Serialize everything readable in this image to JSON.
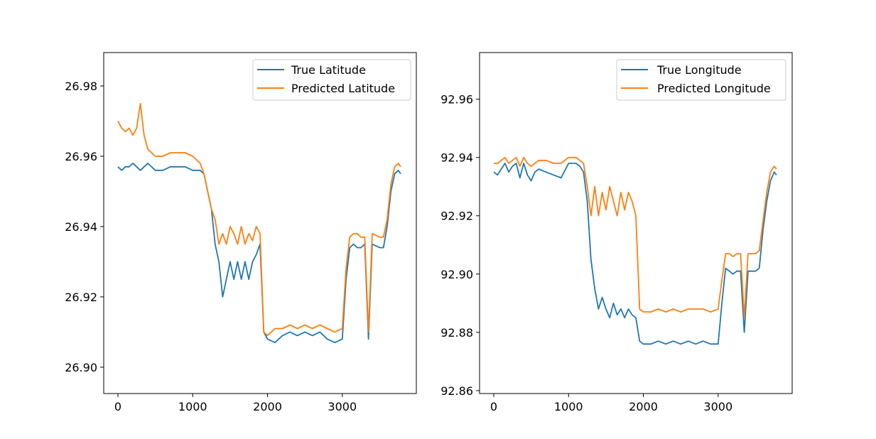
{
  "chart_data": [
    {
      "type": "line",
      "title": "",
      "xlabel": "",
      "ylabel": "",
      "xlim": [
        -190,
        3990
      ],
      "ylim": [
        26.8925,
        26.9895
      ],
      "xticks": [
        0,
        1000,
        2000,
        3000
      ],
      "xtick_labels": [
        "0",
        "1000",
        "2000",
        "3000"
      ],
      "yticks": [
        26.9,
        26.92,
        26.94,
        26.96,
        26.98
      ],
      "ytick_labels": [
        "26.90",
        "26.92",
        "26.94",
        "26.96",
        "26.98"
      ],
      "legend_position": "top-right",
      "grid": false,
      "series": [
        {
          "name": "True Latitude",
          "color": "#1f77b4",
          "x": [
            0,
            50,
            100,
            150,
            200,
            250,
            300,
            350,
            400,
            500,
            600,
            700,
            800,
            900,
            1000,
            1100,
            1150,
            1200,
            1250,
            1300,
            1350,
            1400,
            1450,
            1500,
            1550,
            1600,
            1650,
            1700,
            1750,
            1800,
            1850,
            1900,
            1950,
            2000,
            2100,
            2200,
            2300,
            2400,
            2500,
            2600,
            2700,
            2800,
            2900,
            3000,
            3050,
            3100,
            3150,
            3200,
            3250,
            3300,
            3350,
            3400,
            3500,
            3550,
            3600,
            3650,
            3700,
            3750,
            3780
          ],
          "y": [
            26.957,
            26.956,
            26.957,
            26.957,
            26.958,
            26.957,
            26.956,
            26.957,
            26.958,
            26.956,
            26.956,
            26.957,
            26.957,
            26.957,
            26.956,
            26.956,
            26.955,
            26.95,
            26.945,
            26.935,
            26.93,
            26.92,
            26.925,
            26.93,
            26.925,
            26.93,
            26.925,
            26.93,
            26.925,
            26.93,
            26.932,
            26.935,
            26.91,
            26.908,
            26.907,
            26.909,
            26.91,
            26.909,
            26.91,
            26.909,
            26.91,
            26.908,
            26.907,
            26.908,
            26.925,
            26.934,
            26.935,
            26.934,
            26.934,
            26.935,
            26.908,
            26.935,
            26.934,
            26.934,
            26.94,
            26.95,
            26.955,
            26.956,
            26.955
          ]
        },
        {
          "name": "Predicted Latitude",
          "color": "#ff7f0e",
          "x": [
            0,
            50,
            100,
            150,
            200,
            250,
            300,
            350,
            400,
            500,
            600,
            700,
            800,
            900,
            1000,
            1100,
            1150,
            1200,
            1250,
            1300,
            1350,
            1400,
            1450,
            1500,
            1550,
            1600,
            1650,
            1700,
            1750,
            1800,
            1850,
            1900,
            1950,
            2000,
            2100,
            2200,
            2300,
            2400,
            2500,
            2600,
            2700,
            2800,
            2900,
            3000,
            3050,
            3100,
            3150,
            3200,
            3250,
            3300,
            3350,
            3400,
            3500,
            3550,
            3600,
            3650,
            3700,
            3750,
            3780
          ],
          "y": [
            26.97,
            26.968,
            26.967,
            26.968,
            26.966,
            26.968,
            26.975,
            26.966,
            26.962,
            26.96,
            26.96,
            26.961,
            26.961,
            26.961,
            26.96,
            26.958,
            26.955,
            26.95,
            26.945,
            26.942,
            26.935,
            26.938,
            26.935,
            26.94,
            26.938,
            26.935,
            26.94,
            26.935,
            26.938,
            26.936,
            26.94,
            26.938,
            26.91,
            26.909,
            26.911,
            26.911,
            26.912,
            26.911,
            26.912,
            26.911,
            26.912,
            26.911,
            26.91,
            26.911,
            26.928,
            26.937,
            26.938,
            26.938,
            26.937,
            26.937,
            26.91,
            26.938,
            26.937,
            26.937,
            26.942,
            26.952,
            26.957,
            26.958,
            26.957
          ]
        }
      ]
    },
    {
      "type": "line",
      "title": "",
      "xlabel": "",
      "ylabel": "",
      "xlim": [
        -190,
        3990
      ],
      "ylim": [
        92.859,
        92.976
      ],
      "xticks": [
        0,
        1000,
        2000,
        3000
      ],
      "xtick_labels": [
        "0",
        "1000",
        "2000",
        "3000"
      ],
      "yticks": [
        92.86,
        92.88,
        92.9,
        92.92,
        92.94,
        92.96
      ],
      "ytick_labels": [
        "92.86",
        "92.88",
        "92.90",
        "92.92",
        "92.94",
        "92.96"
      ],
      "legend_position": "top-right",
      "grid": false,
      "series": [
        {
          "name": "True Longitude",
          "color": "#1f77b4",
          "x": [
            0,
            50,
            100,
            150,
            200,
            250,
            300,
            350,
            400,
            450,
            500,
            550,
            600,
            700,
            800,
            900,
            1000,
            1100,
            1150,
            1200,
            1250,
            1300,
            1350,
            1400,
            1450,
            1500,
            1550,
            1600,
            1650,
            1700,
            1750,
            1800,
            1850,
            1900,
            1950,
            2000,
            2100,
            2200,
            2300,
            2400,
            2500,
            2600,
            2700,
            2800,
            2900,
            3000,
            3050,
            3100,
            3150,
            3200,
            3250,
            3300,
            3350,
            3400,
            3500,
            3550,
            3600,
            3650,
            3700,
            3750,
            3780
          ],
          "y": [
            92.935,
            92.934,
            92.936,
            92.938,
            92.935,
            92.937,
            92.938,
            92.933,
            92.938,
            92.934,
            92.932,
            92.935,
            92.936,
            92.935,
            92.934,
            92.933,
            92.938,
            92.938,
            92.937,
            92.935,
            92.925,
            92.905,
            92.895,
            92.888,
            92.892,
            92.888,
            92.885,
            92.89,
            92.886,
            92.888,
            92.885,
            92.888,
            92.886,
            92.885,
            92.877,
            92.876,
            92.876,
            92.877,
            92.876,
            92.877,
            92.876,
            92.877,
            92.876,
            92.877,
            92.876,
            92.876,
            92.89,
            92.902,
            92.901,
            92.9,
            92.901,
            92.901,
            92.88,
            92.901,
            92.901,
            92.902,
            92.915,
            92.925,
            92.932,
            92.935,
            92.934
          ]
        },
        {
          "name": "Predicted Longitude",
          "color": "#ff7f0e",
          "x": [
            0,
            50,
            100,
            150,
            200,
            250,
            300,
            350,
            400,
            450,
            500,
            550,
            600,
            700,
            800,
            900,
            1000,
            1100,
            1150,
            1200,
            1250,
            1300,
            1350,
            1400,
            1450,
            1500,
            1550,
            1600,
            1650,
            1700,
            1750,
            1800,
            1850,
            1900,
            1950,
            2000,
            2100,
            2200,
            2300,
            2400,
            2500,
            2600,
            2700,
            2800,
            2900,
            3000,
            3050,
            3100,
            3150,
            3200,
            3250,
            3300,
            3350,
            3400,
            3500,
            3550,
            3600,
            3650,
            3700,
            3750,
            3780
          ],
          "y": [
            92.938,
            92.938,
            92.939,
            92.94,
            92.938,
            92.939,
            92.94,
            92.937,
            92.94,
            92.938,
            92.937,
            92.938,
            92.939,
            92.939,
            92.938,
            92.938,
            92.94,
            92.94,
            92.939,
            92.938,
            92.93,
            92.92,
            92.93,
            92.92,
            92.928,
            92.922,
            92.93,
            92.925,
            92.92,
            92.928,
            92.922,
            92.928,
            92.925,
            92.92,
            92.888,
            92.887,
            92.887,
            92.888,
            92.887,
            92.888,
            92.887,
            92.888,
            92.888,
            92.888,
            92.887,
            92.888,
            92.898,
            92.907,
            92.907,
            92.906,
            92.907,
            92.907,
            92.885,
            92.907,
            92.907,
            92.908,
            92.918,
            92.928,
            92.935,
            92.937,
            92.936
          ]
        }
      ]
    }
  ]
}
